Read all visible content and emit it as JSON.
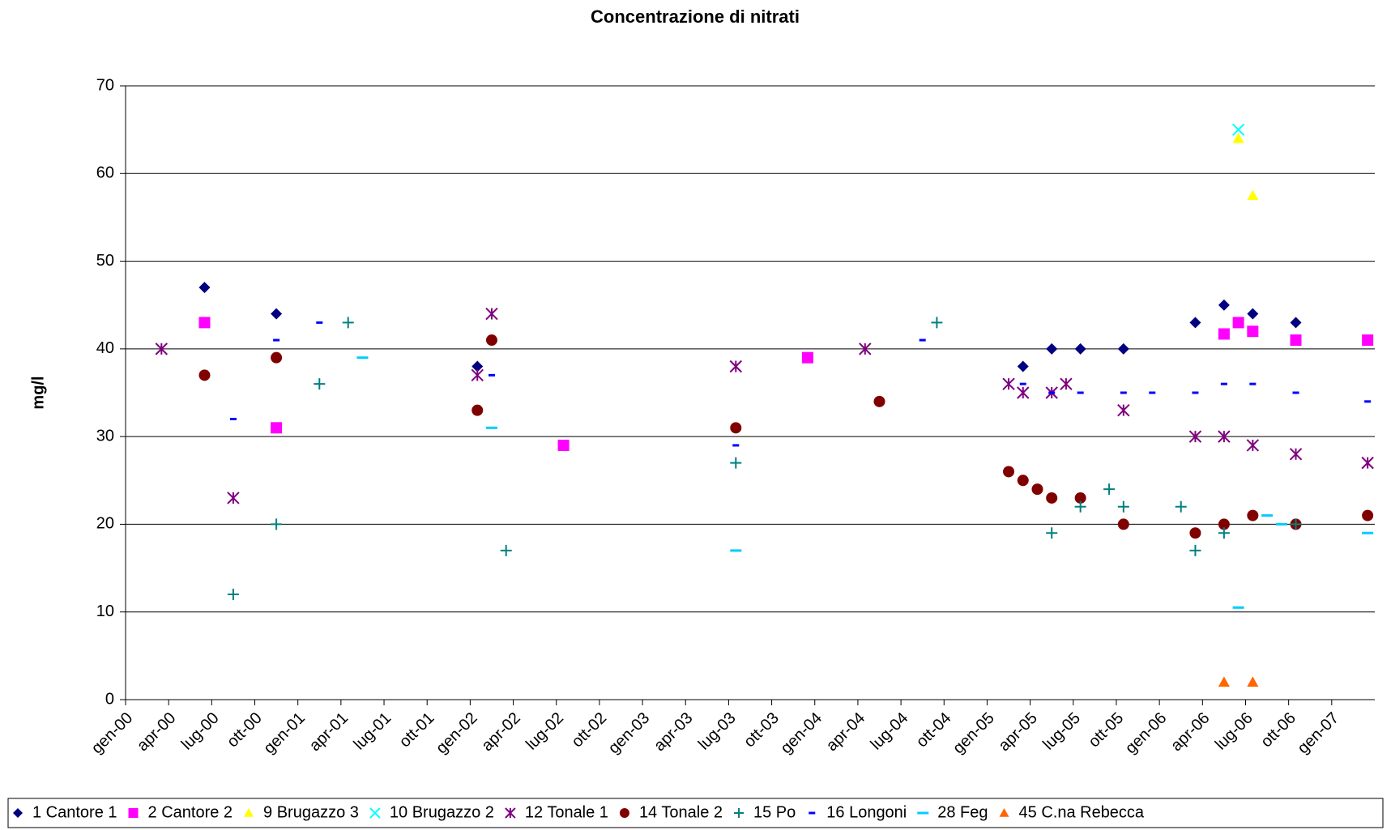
{
  "chart_data": {
    "type": "scatter",
    "title": "Concentrazione di nitrati",
    "y_label": "mg/l",
    "xlim": [
      "2000-01",
      "2007-04"
    ],
    "xticks": [
      {
        "value": "2000-01",
        "label": "gen-00"
      },
      {
        "value": "2000-04",
        "label": "apr-00"
      },
      {
        "value": "2000-07",
        "label": "lug-00"
      },
      {
        "value": "2000-10",
        "label": "ott-00"
      },
      {
        "value": "2001-01",
        "label": "gen-01"
      },
      {
        "value": "2001-04",
        "label": "apr-01"
      },
      {
        "value": "2001-07",
        "label": "lug-01"
      },
      {
        "value": "2001-10",
        "label": "ott-01"
      },
      {
        "value": "2002-01",
        "label": "gen-02"
      },
      {
        "value": "2002-04",
        "label": "apr-02"
      },
      {
        "value": "2002-07",
        "label": "lug-02"
      },
      {
        "value": "2002-10",
        "label": "ott-02"
      },
      {
        "value": "2003-01",
        "label": "gen-03"
      },
      {
        "value": "2003-04",
        "label": "apr-03"
      },
      {
        "value": "2003-07",
        "label": "lug-03"
      },
      {
        "value": "2003-10",
        "label": "ott-03"
      },
      {
        "value": "2004-01",
        "label": "gen-04"
      },
      {
        "value": "2004-04",
        "label": "apr-04"
      },
      {
        "value": "2004-07",
        "label": "lug-04"
      },
      {
        "value": "2004-10",
        "label": "ott-04"
      },
      {
        "value": "2005-01",
        "label": "gen-05"
      },
      {
        "value": "2005-04",
        "label": "apr-05"
      },
      {
        "value": "2005-07",
        "label": "lug-05"
      },
      {
        "value": "2005-10",
        "label": "ott-05"
      },
      {
        "value": "2006-01",
        "label": "gen-06"
      },
      {
        "value": "2006-04",
        "label": "apr-06"
      },
      {
        "value": "2006-07",
        "label": "lug-06"
      },
      {
        "value": "2006-10",
        "label": "ott-06"
      },
      {
        "value": "2007-01",
        "label": "gen-07"
      }
    ],
    "ylim": [
      0,
      70
    ],
    "yticks": [
      0,
      10,
      20,
      30,
      40,
      50,
      60,
      70
    ],
    "grid": true,
    "legend": "bottom",
    "series": [
      {
        "name": "1 Cantore 1",
        "color": "#000080",
        "marker": "diamond",
        "x": [
          "2000-06",
          "2000-11",
          "2002-01",
          "2005-03",
          "2005-05",
          "2005-07",
          "2005-10",
          "2006-03",
          "2006-05",
          "2006-07",
          "2006-10"
        ],
        "values": [
          47,
          44,
          38,
          38,
          40,
          40,
          40,
          43,
          45,
          44,
          43
        ]
      },
      {
        "name": "2 Cantore 2",
        "color": "#ff00ff",
        "marker": "square",
        "x": [
          "2000-06",
          "2000-11",
          "2002-07",
          "2003-12",
          "2006-05",
          "2006-06",
          "2006-07",
          "2006-10",
          "2007-03"
        ],
        "values": [
          43,
          31,
          29,
          39,
          41.7,
          43,
          42,
          41,
          41
        ]
      },
      {
        "name": "9 Brugazzo 3",
        "color": "#ffff00",
        "marker": "triangle",
        "x": [
          "2006-06",
          "2006-07"
        ],
        "values": [
          64,
          57.5
        ]
      },
      {
        "name": "10 Brugazzo 2",
        "color": "#00ffff",
        "marker": "x",
        "x": [
          "2006-06"
        ],
        "values": [
          65
        ]
      },
      {
        "name": "12 Tonale 1",
        "color": "#800080",
        "marker": "star",
        "x": [
          "2000-03",
          "2000-08",
          "2002-01",
          "2002-02",
          "2003-07",
          "2004-04",
          "2005-02",
          "2005-03",
          "2005-05",
          "2005-06",
          "2005-10",
          "2006-03",
          "2006-05",
          "2006-07",
          "2006-10",
          "2007-03"
        ],
        "values": [
          40,
          23,
          37,
          44,
          38,
          40,
          36,
          35,
          35,
          36,
          33,
          30,
          30,
          29,
          28,
          27
        ]
      },
      {
        "name": "14 Tonale 2",
        "color": "#800000",
        "marker": "circle",
        "x": [
          "2000-06",
          "2000-11",
          "2002-01",
          "2002-02",
          "2003-07",
          "2004-05",
          "2005-02",
          "2005-03",
          "2005-04",
          "2005-05",
          "2005-07",
          "2005-10",
          "2006-03",
          "2006-05",
          "2006-07",
          "2006-10",
          "2007-03"
        ],
        "values": [
          37,
          39,
          33,
          41,
          31,
          34,
          26,
          25,
          24,
          23,
          23,
          20,
          19,
          20,
          21,
          20,
          21
        ]
      },
      {
        "name": "15 Po",
        "color": "#008080",
        "marker": "plus",
        "x": [
          "2000-08",
          "2000-11",
          "2001-02",
          "2001-04",
          "2002-03",
          "2003-07",
          "2004-09",
          "2005-05",
          "2005-07",
          "2005-09",
          "2005-10",
          "2006-02",
          "2006-03",
          "2006-05",
          "2006-10"
        ],
        "values": [
          12,
          20,
          36,
          43,
          17,
          27,
          43,
          19,
          22,
          24,
          22,
          22,
          17,
          19,
          20
        ]
      },
      {
        "name": "16 Longoni",
        "color": "#0000ff",
        "marker": "dash",
        "x": [
          "2000-08",
          "2000-11",
          "2001-02",
          "2002-02",
          "2003-07",
          "2004-08",
          "2005-03",
          "2005-05",
          "2005-07",
          "2005-10",
          "2005-12",
          "2006-03",
          "2006-05",
          "2006-07",
          "2006-10",
          "2007-03"
        ],
        "values": [
          32,
          41,
          43,
          37,
          29,
          41,
          36,
          35,
          35,
          35,
          35,
          35,
          36,
          36,
          35,
          34
        ]
      },
      {
        "name": "28 Feg",
        "color": "#00ccff",
        "marker": "longdash",
        "x": [
          "2001-05",
          "2002-02",
          "2003-07",
          "2006-06",
          "2006-08",
          "2006-09",
          "2007-03"
        ],
        "values": [
          39,
          31,
          17,
          10.5,
          21,
          20,
          19
        ]
      },
      {
        "name": "45 C.na Rebecca",
        "color": "#ff6600",
        "marker": "triangle",
        "x": [
          "2006-05",
          "2006-07"
        ],
        "values": [
          2,
          2
        ]
      }
    ]
  }
}
